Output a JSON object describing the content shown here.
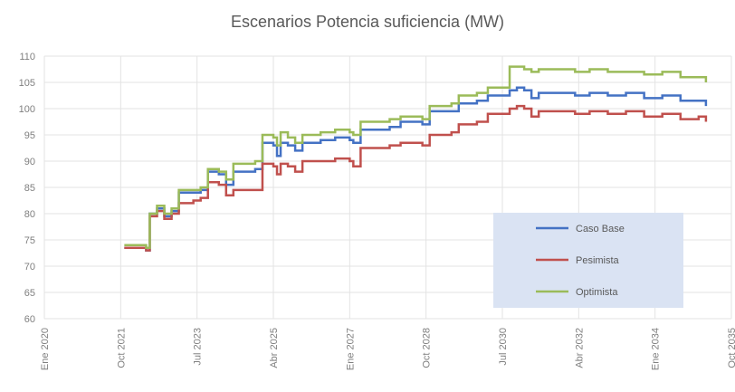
{
  "chart_data": {
    "type": "line",
    "title": "Escenarios Potencia suficiencia (MW)",
    "xlabel": "",
    "ylabel": "",
    "ylim": [
      60,
      110
    ],
    "yticks": [
      60,
      65,
      70,
      75,
      80,
      85,
      90,
      95,
      100,
      105,
      110
    ],
    "xlim": [
      0,
      189
    ],
    "xtick_labels": [
      "Ene 2020",
      "Oct 2021",
      "Jul 2023",
      "Abr 2025",
      "Ene 2027",
      "Oct 2028",
      "Jul 2030",
      "Abr 2032",
      "Ene 2034",
      "Oct 2035"
    ],
    "x_unit": "months since Ene 2020",
    "grid": true,
    "legend": "inside-bottom-right",
    "series": [
      {
        "name": "Caso Base",
        "color": "#4472c4",
        "points": [
          [
            22,
            73.5
          ],
          [
            28,
            73
          ],
          [
            29,
            80
          ],
          [
            31,
            81
          ],
          [
            33,
            79.5
          ],
          [
            35,
            80.5
          ],
          [
            37,
            84
          ],
          [
            41,
            84
          ],
          [
            43,
            84.5
          ],
          [
            45,
            88
          ],
          [
            48,
            87.5
          ],
          [
            50,
            85.5
          ],
          [
            52,
            88
          ],
          [
            58,
            88.5
          ],
          [
            60,
            93.5
          ],
          [
            63,
            93
          ],
          [
            64,
            91
          ],
          [
            65,
            93.5
          ],
          [
            67,
            93
          ],
          [
            69,
            92
          ],
          [
            71,
            93.5
          ],
          [
            76,
            94
          ],
          [
            80,
            94.5
          ],
          [
            84,
            94
          ],
          [
            85,
            93.5
          ],
          [
            87,
            96
          ],
          [
            95,
            96.5
          ],
          [
            98,
            97.5
          ],
          [
            104,
            97
          ],
          [
            106,
            99.5
          ],
          [
            112,
            99.5
          ],
          [
            114,
            101
          ],
          [
            119,
            101.5
          ],
          [
            122,
            102.5
          ],
          [
            127,
            102.5
          ],
          [
            128,
            103.5
          ],
          [
            130,
            104
          ],
          [
            132,
            103.5
          ],
          [
            134,
            102
          ],
          [
            136,
            103
          ],
          [
            142,
            103
          ],
          [
            146,
            102.5
          ],
          [
            150,
            103
          ],
          [
            155,
            102.5
          ],
          [
            160,
            103
          ],
          [
            165,
            102
          ],
          [
            170,
            102.5
          ],
          [
            175,
            101.5
          ],
          [
            180,
            101.5
          ],
          [
            182,
            100.5
          ]
        ]
      },
      {
        "name": "Pesimista",
        "color": "#c0504d",
        "points": [
          [
            22,
            73.5
          ],
          [
            28,
            73
          ],
          [
            29,
            79.5
          ],
          [
            31,
            80.5
          ],
          [
            33,
            79
          ],
          [
            35,
            80
          ],
          [
            37,
            82
          ],
          [
            41,
            82.5
          ],
          [
            43,
            83
          ],
          [
            45,
            86
          ],
          [
            48,
            85.5
          ],
          [
            50,
            83.5
          ],
          [
            52,
            84.5
          ],
          [
            58,
            84.5
          ],
          [
            60,
            89.5
          ],
          [
            63,
            89
          ],
          [
            64,
            87.5
          ],
          [
            65,
            89.5
          ],
          [
            67,
            89
          ],
          [
            69,
            88
          ],
          [
            71,
            90
          ],
          [
            76,
            90
          ],
          [
            80,
            90.5
          ],
          [
            84,
            90
          ],
          [
            85,
            89
          ],
          [
            87,
            92.5
          ],
          [
            95,
            93
          ],
          [
            98,
            93.5
          ],
          [
            104,
            93
          ],
          [
            106,
            95
          ],
          [
            112,
            95.5
          ],
          [
            114,
            97
          ],
          [
            119,
            97.5
          ],
          [
            122,
            99
          ],
          [
            127,
            99
          ],
          [
            128,
            100
          ],
          [
            130,
            100.5
          ],
          [
            132,
            100
          ],
          [
            134,
            98.5
          ],
          [
            136,
            99.5
          ],
          [
            142,
            99.5
          ],
          [
            146,
            99
          ],
          [
            150,
            99.5
          ],
          [
            155,
            99
          ],
          [
            160,
            99.5
          ],
          [
            165,
            98.5
          ],
          [
            170,
            99
          ],
          [
            175,
            98
          ],
          [
            180,
            98.5
          ],
          [
            182,
            97.5
          ]
        ]
      },
      {
        "name": "Optimista",
        "color": "#9bbb59",
        "points": [
          [
            22,
            74
          ],
          [
            28,
            73.5
          ],
          [
            29,
            80
          ],
          [
            31,
            81.5
          ],
          [
            33,
            80
          ],
          [
            35,
            81
          ],
          [
            37,
            84.5
          ],
          [
            41,
            84.5
          ],
          [
            43,
            85
          ],
          [
            45,
            88.5
          ],
          [
            48,
            88
          ],
          [
            50,
            86.5
          ],
          [
            52,
            89.5
          ],
          [
            58,
            90
          ],
          [
            60,
            95
          ],
          [
            63,
            94.5
          ],
          [
            64,
            93
          ],
          [
            65,
            95.5
          ],
          [
            67,
            94.5
          ],
          [
            69,
            93.5
          ],
          [
            71,
            95
          ],
          [
            76,
            95.5
          ],
          [
            80,
            96
          ],
          [
            84,
            95.5
          ],
          [
            85,
            95
          ],
          [
            87,
            97.5
          ],
          [
            95,
            98
          ],
          [
            98,
            98.5
          ],
          [
            104,
            98
          ],
          [
            106,
            100.5
          ],
          [
            112,
            101
          ],
          [
            114,
            102.5
          ],
          [
            119,
            103
          ],
          [
            122,
            104
          ],
          [
            127,
            104
          ],
          [
            128,
            108
          ],
          [
            130,
            108
          ],
          [
            132,
            107.5
          ],
          [
            134,
            107
          ],
          [
            136,
            107.5
          ],
          [
            142,
            107.5
          ],
          [
            146,
            107
          ],
          [
            150,
            107.5
          ],
          [
            155,
            107
          ],
          [
            160,
            107
          ],
          [
            165,
            106.5
          ],
          [
            170,
            107
          ],
          [
            175,
            106
          ],
          [
            180,
            106
          ],
          [
            182,
            105
          ]
        ]
      }
    ]
  }
}
